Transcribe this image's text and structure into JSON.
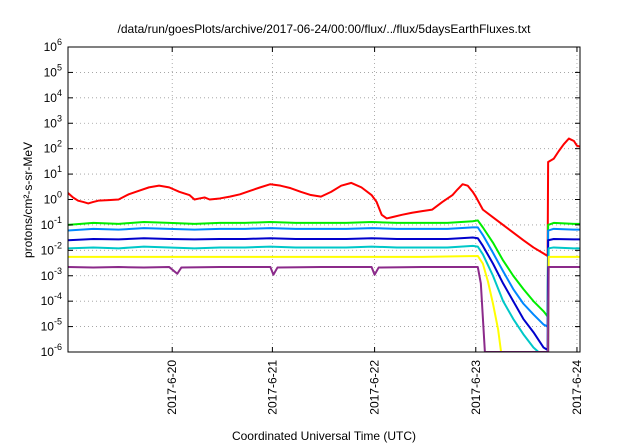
{
  "chart_data": {
    "type": "line",
    "title": "/data/run/goesPlots/archive/2017-06-24/00:00/flux/../flux/5daysEarthFluxes.txt",
    "xlabel": "Coordinated Universal Time (UTC)",
    "ylabel": "protons/cm²-s-sr-MeV",
    "yscale": "log",
    "ylim": [
      1e-06,
      1000000.0
    ],
    "yticks": [
      {
        "value": 1e-06,
        "base": "10",
        "exp": "-6"
      },
      {
        "value": 1e-05,
        "base": "10",
        "exp": "-5"
      },
      {
        "value": 0.0001,
        "base": "10",
        "exp": "-4"
      },
      {
        "value": 0.001,
        "base": "10",
        "exp": "-3"
      },
      {
        "value": 0.01,
        "base": "10",
        "exp": "-2"
      },
      {
        "value": 0.1,
        "base": "10",
        "exp": "-1"
      },
      {
        "value": 1,
        "base": "10",
        "exp": "0"
      },
      {
        "value": 10,
        "base": "10",
        "exp": "1"
      },
      {
        "value": 100,
        "base": "10",
        "exp": "2"
      },
      {
        "value": 1000,
        "base": "10",
        "exp": "3"
      },
      {
        "value": 10000,
        "base": "10",
        "exp": "4"
      },
      {
        "value": 100000,
        "base": "10",
        "exp": "5"
      },
      {
        "value": 1000000,
        "base": "10",
        "exp": "6"
      }
    ],
    "xlim": [
      0.0,
      5.06
    ],
    "xticks": [
      {
        "value": 1.03,
        "label": "2017-6-20"
      },
      {
        "value": 2.02,
        "label": "2017-6-21"
      },
      {
        "value": 3.03,
        "label": "2017-6-22"
      },
      {
        "value": 4.03,
        "label": "2017-6-23"
      },
      {
        "value": 5.03,
        "label": "2017-6-24"
      }
    ],
    "grid": true,
    "legend": "none",
    "series": [
      {
        "color": "#ff0000",
        "points": [
          [
            0.0,
            1.8
          ],
          [
            0.05,
            1.2
          ],
          [
            0.1,
            0.9
          ],
          [
            0.15,
            0.8
          ],
          [
            0.2,
            0.7
          ],
          [
            0.25,
            0.8
          ],
          [
            0.3,
            0.9
          ],
          [
            0.4,
            0.95
          ],
          [
            0.5,
            1.0
          ],
          [
            0.6,
            1.6
          ],
          [
            0.7,
            2.2
          ],
          [
            0.8,
            3.0
          ],
          [
            0.9,
            3.5
          ],
          [
            1.0,
            3.0
          ],
          [
            1.1,
            2.0
          ],
          [
            1.2,
            1.5
          ],
          [
            1.25,
            1.0
          ],
          [
            1.3,
            1.1
          ],
          [
            1.35,
            1.2
          ],
          [
            1.4,
            1.0
          ],
          [
            1.5,
            1.1
          ],
          [
            1.6,
            1.3
          ],
          [
            1.7,
            1.6
          ],
          [
            1.8,
            2.2
          ],
          [
            1.9,
            3.0
          ],
          [
            2.0,
            4.0
          ],
          [
            2.1,
            3.5
          ],
          [
            2.2,
            2.8
          ],
          [
            2.3,
            2.0
          ],
          [
            2.4,
            1.5
          ],
          [
            2.5,
            1.3
          ],
          [
            2.6,
            2.0
          ],
          [
            2.7,
            3.5
          ],
          [
            2.8,
            4.5
          ],
          [
            2.9,
            3.0
          ],
          [
            3.0,
            1.5
          ],
          [
            3.05,
            0.8
          ],
          [
            3.1,
            0.25
          ],
          [
            3.15,
            0.18
          ],
          [
            3.2,
            0.2
          ],
          [
            3.3,
            0.25
          ],
          [
            3.4,
            0.3
          ],
          [
            3.5,
            0.35
          ],
          [
            3.6,
            0.4
          ],
          [
            3.7,
            0.8
          ],
          [
            3.8,
            1.5
          ],
          [
            3.85,
            2.5
          ],
          [
            3.9,
            4.0
          ],
          [
            3.95,
            3.5
          ],
          [
            4.0,
            2.0
          ],
          [
            4.03,
            1.3
          ],
          [
            4.1,
            0.4
          ],
          [
            4.2,
            0.2
          ],
          [
            4.3,
            0.1
          ],
          [
            4.4,
            0.05
          ],
          [
            4.5,
            0.025
          ],
          [
            4.6,
            0.013
          ],
          [
            4.7,
            0.0075
          ],
          [
            4.74,
            0.006
          ],
          [
            4.745,
            30
          ],
          [
            4.8,
            40
          ],
          [
            4.85,
            80
          ],
          [
            4.9,
            150
          ],
          [
            4.95,
            250
          ],
          [
            5.0,
            200
          ],
          [
            5.03,
            130
          ],
          [
            5.06,
            120
          ]
        ]
      },
      {
        "color": "#00ee00",
        "points": [
          [
            0.0,
            0.1
          ],
          [
            0.25,
            0.12
          ],
          [
            0.5,
            0.11
          ],
          [
            0.75,
            0.13
          ],
          [
            1.0,
            0.12
          ],
          [
            1.25,
            0.11
          ],
          [
            1.5,
            0.12
          ],
          [
            1.75,
            0.12
          ],
          [
            2.0,
            0.13
          ],
          [
            2.25,
            0.12
          ],
          [
            2.5,
            0.12
          ],
          [
            2.75,
            0.12
          ],
          [
            3.0,
            0.13
          ],
          [
            3.25,
            0.12
          ],
          [
            3.5,
            0.12
          ],
          [
            3.75,
            0.12
          ],
          [
            4.0,
            0.14
          ],
          [
            4.05,
            0.15
          ],
          [
            4.1,
            0.08
          ],
          [
            4.2,
            0.02
          ],
          [
            4.3,
            0.004
          ],
          [
            4.4,
            0.001
          ],
          [
            4.5,
            0.0003
          ],
          [
            4.6,
            0.0001
          ],
          [
            4.7,
            4e-05
          ],
          [
            4.74,
            2.5e-05
          ],
          [
            4.745,
            0.1
          ],
          [
            4.8,
            0.12
          ],
          [
            5.0,
            0.11
          ],
          [
            5.06,
            0.11
          ]
        ]
      },
      {
        "color": "#0088ff",
        "points": [
          [
            0.0,
            0.06
          ],
          [
            0.25,
            0.07
          ],
          [
            0.5,
            0.065
          ],
          [
            0.75,
            0.075
          ],
          [
            1.0,
            0.07
          ],
          [
            1.25,
            0.065
          ],
          [
            1.5,
            0.07
          ],
          [
            1.75,
            0.07
          ],
          [
            2.0,
            0.075
          ],
          [
            2.25,
            0.07
          ],
          [
            2.5,
            0.07
          ],
          [
            2.75,
            0.07
          ],
          [
            3.0,
            0.075
          ],
          [
            3.25,
            0.07
          ],
          [
            3.5,
            0.07
          ],
          [
            3.75,
            0.07
          ],
          [
            4.0,
            0.08
          ],
          [
            4.05,
            0.08
          ],
          [
            4.1,
            0.04
          ],
          [
            4.2,
            0.008
          ],
          [
            4.3,
            0.0015
          ],
          [
            4.4,
            0.0003
          ],
          [
            4.5,
            8e-05
          ],
          [
            4.6,
            3e-05
          ],
          [
            4.7,
            1.2e-05
          ],
          [
            4.74,
            1e-05
          ],
          [
            4.745,
            0.06
          ],
          [
            4.8,
            0.07
          ],
          [
            5.0,
            0.065
          ],
          [
            5.06,
            0.065
          ]
        ]
      },
      {
        "color": "#0000cc",
        "points": [
          [
            0.0,
            0.025
          ],
          [
            0.25,
            0.028
          ],
          [
            0.5,
            0.027
          ],
          [
            0.75,
            0.03
          ],
          [
            1.0,
            0.028
          ],
          [
            1.25,
            0.027
          ],
          [
            1.5,
            0.028
          ],
          [
            1.75,
            0.028
          ],
          [
            2.0,
            0.03
          ],
          [
            2.25,
            0.028
          ],
          [
            2.5,
            0.028
          ],
          [
            2.75,
            0.028
          ],
          [
            3.0,
            0.03
          ],
          [
            3.25,
            0.028
          ],
          [
            3.5,
            0.028
          ],
          [
            3.75,
            0.028
          ],
          [
            4.0,
            0.032
          ],
          [
            4.05,
            0.03
          ],
          [
            4.1,
            0.015
          ],
          [
            4.2,
            0.003
          ],
          [
            4.3,
            0.0005
          ],
          [
            4.4,
            0.0001
          ],
          [
            4.5,
            2e-05
          ],
          [
            4.6,
            6e-06
          ],
          [
            4.7,
            1.5e-06
          ],
          [
            4.74,
            1.2e-06
          ],
          [
            4.745,
            0.025
          ],
          [
            4.8,
            0.028
          ],
          [
            5.0,
            0.027
          ],
          [
            5.06,
            0.027
          ]
        ]
      },
      {
        "color": "#00c8c8",
        "points": [
          [
            0.0,
            0.012
          ],
          [
            0.25,
            0.013
          ],
          [
            0.5,
            0.012
          ],
          [
            0.75,
            0.014
          ],
          [
            1.0,
            0.013
          ],
          [
            1.25,
            0.012
          ],
          [
            1.5,
            0.013
          ],
          [
            1.75,
            0.013
          ],
          [
            2.0,
            0.014
          ],
          [
            2.25,
            0.013
          ],
          [
            2.5,
            0.013
          ],
          [
            2.75,
            0.013
          ],
          [
            3.0,
            0.014
          ],
          [
            3.25,
            0.013
          ],
          [
            3.5,
            0.013
          ],
          [
            3.75,
            0.013
          ],
          [
            4.0,
            0.015
          ],
          [
            4.05,
            0.014
          ],
          [
            4.1,
            0.007
          ],
          [
            4.2,
            0.001
          ],
          [
            4.3,
            0.0001
          ],
          [
            4.4,
            2e-05
          ],
          [
            4.5,
            5e-06
          ],
          [
            4.6,
            1.5e-06
          ],
          [
            4.65,
            1e-06
          ],
          [
            4.745,
            1e-06
          ],
          [
            4.75,
            0.012
          ],
          [
            4.8,
            0.013
          ],
          [
            5.0,
            0.012
          ],
          [
            5.06,
            0.012
          ]
        ]
      },
      {
        "color": "#ffff00",
        "points": [
          [
            0.0,
            0.0055
          ],
          [
            0.5,
            0.0055
          ],
          [
            1.0,
            0.0055
          ],
          [
            1.5,
            0.0055
          ],
          [
            2.0,
            0.0055
          ],
          [
            2.5,
            0.0055
          ],
          [
            3.0,
            0.0055
          ],
          [
            3.5,
            0.0055
          ],
          [
            4.05,
            0.006
          ],
          [
            4.1,
            0.003
          ],
          [
            4.15,
            0.0006
          ],
          [
            4.2,
            8e-05
          ],
          [
            4.25,
            8e-06
          ],
          [
            4.28,
            1e-06
          ],
          [
            4.745,
            1e-06
          ],
          [
            4.75,
            0.0055
          ],
          [
            5.06,
            0.0055
          ]
        ]
      },
      {
        "color": "#8b2a8a",
        "points": [
          [
            0.0,
            0.0022
          ],
          [
            0.25,
            0.0021
          ],
          [
            0.5,
            0.0022
          ],
          [
            0.75,
            0.0021
          ],
          [
            1.0,
            0.0022
          ],
          [
            1.08,
            0.0012
          ],
          [
            1.12,
            0.0021
          ],
          [
            1.5,
            0.0022
          ],
          [
            2.0,
            0.0022
          ],
          [
            2.03,
            0.0011
          ],
          [
            2.07,
            0.0021
          ],
          [
            2.5,
            0.0022
          ],
          [
            3.0,
            0.0022
          ],
          [
            3.03,
            0.0011
          ],
          [
            3.07,
            0.0021
          ],
          [
            3.5,
            0.0022
          ],
          [
            4.0,
            0.0022
          ],
          [
            4.05,
            0.0022
          ],
          [
            4.08,
            0.0005
          ],
          [
            4.12,
            1e-06
          ],
          [
            4.745,
            1e-06
          ],
          [
            4.75,
            0.0022
          ],
          [
            5.06,
            0.0022
          ]
        ]
      }
    ]
  }
}
